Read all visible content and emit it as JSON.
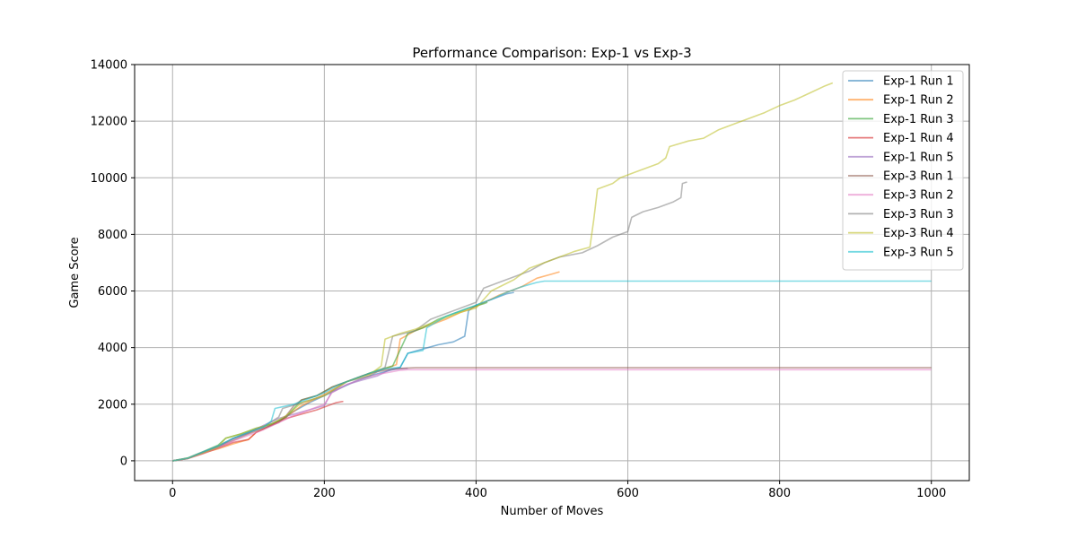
{
  "chart_data": {
    "type": "line",
    "title": "Performance Comparison: Exp-1 vs Exp-3",
    "xlabel": "Number of Moves",
    "ylabel": "Game Score",
    "xlim": [
      -50,
      1050
    ],
    "ylim": [
      -700,
      14000
    ],
    "xticks": [
      0,
      200,
      400,
      600,
      800,
      1000
    ],
    "yticks": [
      0,
      2000,
      4000,
      6000,
      8000,
      10000,
      12000,
      14000
    ],
    "xtick_labels": [
      "0",
      "200",
      "400",
      "600",
      "800",
      "1000"
    ],
    "ytick_labels": [
      "0",
      "2000",
      "4000",
      "6000",
      "8000",
      "10000",
      "12000",
      "14000"
    ],
    "grid": true,
    "legend_position": "top-right",
    "series": [
      {
        "name": "Exp-1 Run 1",
        "color": "#1f77b4",
        "points": [
          [
            0,
            0
          ],
          [
            20,
            90
          ],
          [
            40,
            300
          ],
          [
            60,
            520
          ],
          [
            80,
            800
          ],
          [
            100,
            1000
          ],
          [
            120,
            1200
          ],
          [
            140,
            1400
          ],
          [
            160,
            1750
          ],
          [
            180,
            2050
          ],
          [
            200,
            2300
          ],
          [
            220,
            2550
          ],
          [
            240,
            2800
          ],
          [
            260,
            3000
          ],
          [
            280,
            3150
          ],
          [
            300,
            3300
          ],
          [
            310,
            3800
          ],
          [
            330,
            3950
          ],
          [
            350,
            4100
          ],
          [
            370,
            4200
          ],
          [
            385,
            4400
          ],
          [
            390,
            5300
          ],
          [
            400,
            5500
          ],
          [
            420,
            5700
          ],
          [
            440,
            5900
          ],
          [
            450,
            5950
          ]
        ]
      },
      {
        "name": "Exp-1 Run 2",
        "color": "#ff7f0e",
        "points": [
          [
            0,
            0
          ],
          [
            20,
            80
          ],
          [
            40,
            280
          ],
          [
            60,
            420
          ],
          [
            80,
            600
          ],
          [
            100,
            750
          ],
          [
            110,
            1000
          ],
          [
            130,
            1250
          ],
          [
            150,
            1550
          ],
          [
            170,
            1950
          ],
          [
            200,
            2350
          ],
          [
            230,
            2800
          ],
          [
            260,
            3100
          ],
          [
            280,
            3250
          ],
          [
            295,
            3400
          ],
          [
            300,
            4300
          ],
          [
            320,
            4600
          ],
          [
            340,
            4800
          ],
          [
            360,
            5000
          ],
          [
            380,
            5250
          ],
          [
            400,
            5450
          ],
          [
            430,
            5850
          ],
          [
            460,
            6150
          ],
          [
            480,
            6450
          ],
          [
            500,
            6600
          ],
          [
            510,
            6680
          ]
        ]
      },
      {
        "name": "Exp-1 Run 3",
        "color": "#2ca02c",
        "points": [
          [
            0,
            0
          ],
          [
            20,
            100
          ],
          [
            40,
            320
          ],
          [
            60,
            550
          ],
          [
            70,
            800
          ],
          [
            90,
            950
          ],
          [
            110,
            1150
          ],
          [
            130,
            1300
          ],
          [
            150,
            1550
          ],
          [
            170,
            2150
          ],
          [
            190,
            2300
          ],
          [
            210,
            2600
          ],
          [
            230,
            2800
          ],
          [
            250,
            3000
          ],
          [
            270,
            3200
          ],
          [
            290,
            3350
          ],
          [
            310,
            4500
          ],
          [
            330,
            4700
          ],
          [
            350,
            5000
          ],
          [
            370,
            5200
          ],
          [
            390,
            5400
          ],
          [
            410,
            5550
          ],
          [
            415,
            5600
          ]
        ]
      },
      {
        "name": "Exp-1 Run 4",
        "color": "#d62728",
        "points": [
          [
            0,
            0
          ],
          [
            20,
            80
          ],
          [
            40,
            250
          ],
          [
            60,
            450
          ],
          [
            80,
            650
          ],
          [
            100,
            750
          ],
          [
            110,
            1000
          ],
          [
            130,
            1250
          ],
          [
            150,
            1500
          ],
          [
            170,
            1650
          ],
          [
            190,
            1800
          ],
          [
            205,
            1950
          ],
          [
            215,
            2050
          ],
          [
            225,
            2100
          ]
        ]
      },
      {
        "name": "Exp-1 Run 5",
        "color": "#9467bd",
        "points": [
          [
            0,
            0
          ],
          [
            20,
            90
          ],
          [
            40,
            300
          ],
          [
            60,
            500
          ],
          [
            80,
            780
          ],
          [
            100,
            980
          ],
          [
            120,
            1250
          ],
          [
            140,
            1500
          ],
          [
            160,
            1650
          ],
          [
            180,
            1800
          ],
          [
            200,
            1950
          ],
          [
            210,
            2450
          ],
          [
            230,
            2700
          ],
          [
            250,
            2850
          ],
          [
            270,
            3000
          ],
          [
            285,
            3200
          ],
          [
            300,
            3250
          ],
          [
            310,
            3270
          ]
        ]
      },
      {
        "name": "Exp-3 Run 1",
        "color": "#8c564b",
        "points": [
          [
            0,
            0
          ],
          [
            20,
            80
          ],
          [
            40,
            280
          ],
          [
            60,
            480
          ],
          [
            80,
            720
          ],
          [
            100,
            950
          ],
          [
            120,
            1150
          ],
          [
            140,
            1350
          ],
          [
            150,
            1600
          ],
          [
            160,
            1950
          ],
          [
            170,
            2150
          ],
          [
            190,
            2300
          ],
          [
            210,
            2600
          ],
          [
            230,
            2800
          ],
          [
            250,
            3000
          ],
          [
            270,
            3150
          ],
          [
            290,
            3250
          ],
          [
            310,
            3280
          ],
          [
            320,
            3290
          ],
          [
            1000,
            3290
          ]
        ]
      },
      {
        "name": "Exp-3 Run 2",
        "color": "#e377c2",
        "points": [
          [
            0,
            0
          ],
          [
            20,
            80
          ],
          [
            40,
            270
          ],
          [
            60,
            460
          ],
          [
            80,
            700
          ],
          [
            100,
            900
          ],
          [
            120,
            1100
          ],
          [
            140,
            1350
          ],
          [
            160,
            1600
          ],
          [
            180,
            1800
          ],
          [
            200,
            2000
          ],
          [
            210,
            2400
          ],
          [
            230,
            2700
          ],
          [
            250,
            2900
          ],
          [
            270,
            3050
          ],
          [
            290,
            3150
          ],
          [
            300,
            3200
          ],
          [
            310,
            3220
          ],
          [
            1000,
            3220
          ]
        ]
      },
      {
        "name": "Exp-3 Run 3",
        "color": "#7f7f7f",
        "points": [
          [
            0,
            0
          ],
          [
            20,
            90
          ],
          [
            40,
            300
          ],
          [
            60,
            520
          ],
          [
            80,
            780
          ],
          [
            100,
            1000
          ],
          [
            120,
            1200
          ],
          [
            140,
            1550
          ],
          [
            145,
            1850
          ],
          [
            170,
            2050
          ],
          [
            200,
            2300
          ],
          [
            230,
            2800
          ],
          [
            260,
            3000
          ],
          [
            280,
            3300
          ],
          [
            290,
            4400
          ],
          [
            320,
            4600
          ],
          [
            340,
            5000
          ],
          [
            360,
            5200
          ],
          [
            380,
            5400
          ],
          [
            400,
            5600
          ],
          [
            410,
            6100
          ],
          [
            430,
            6300
          ],
          [
            450,
            6500
          ],
          [
            470,
            6700
          ],
          [
            490,
            7000
          ],
          [
            510,
            7200
          ],
          [
            540,
            7350
          ],
          [
            560,
            7600
          ],
          [
            580,
            7900
          ],
          [
            600,
            8100
          ],
          [
            605,
            8600
          ],
          [
            620,
            8800
          ],
          [
            640,
            8950
          ],
          [
            660,
            9150
          ],
          [
            670,
            9300
          ],
          [
            672,
            9800
          ],
          [
            678,
            9850
          ]
        ]
      },
      {
        "name": "Exp-3 Run 4",
        "color": "#bcbd22",
        "points": [
          [
            0,
            0
          ],
          [
            20,
            90
          ],
          [
            40,
            280
          ],
          [
            60,
            480
          ],
          [
            70,
            800
          ],
          [
            90,
            950
          ],
          [
            110,
            1150
          ],
          [
            130,
            1300
          ],
          [
            150,
            1600
          ],
          [
            170,
            2050
          ],
          [
            200,
            2300
          ],
          [
            230,
            2800
          ],
          [
            260,
            3050
          ],
          [
            275,
            3350
          ],
          [
            280,
            4300
          ],
          [
            300,
            4500
          ],
          [
            320,
            4650
          ],
          [
            340,
            4850
          ],
          [
            360,
            5050
          ],
          [
            380,
            5250
          ],
          [
            400,
            5400
          ],
          [
            420,
            6000
          ],
          [
            450,
            6400
          ],
          [
            470,
            6800
          ],
          [
            490,
            7000
          ],
          [
            510,
            7200
          ],
          [
            530,
            7400
          ],
          [
            550,
            7550
          ],
          [
            555,
            8500
          ],
          [
            560,
            9600
          ],
          [
            580,
            9800
          ],
          [
            590,
            10000
          ],
          [
            610,
            10200
          ],
          [
            640,
            10500
          ],
          [
            650,
            10700
          ],
          [
            655,
            11100
          ],
          [
            680,
            11300
          ],
          [
            700,
            11400
          ],
          [
            720,
            11700
          ],
          [
            740,
            11900
          ],
          [
            760,
            12100
          ],
          [
            780,
            12300
          ],
          [
            800,
            12550
          ],
          [
            820,
            12750
          ],
          [
            840,
            13000
          ],
          [
            860,
            13250
          ],
          [
            870,
            13350
          ]
        ]
      },
      {
        "name": "Exp-3 Run 5",
        "color": "#17becf",
        "points": [
          [
            0,
            0
          ],
          [
            20,
            90
          ],
          [
            40,
            310
          ],
          [
            60,
            520
          ],
          [
            80,
            800
          ],
          [
            100,
            1000
          ],
          [
            120,
            1200
          ],
          [
            130,
            1400
          ],
          [
            135,
            1850
          ],
          [
            160,
            2000
          ],
          [
            180,
            2200
          ],
          [
            200,
            2400
          ],
          [
            220,
            2700
          ],
          [
            240,
            2900
          ],
          [
            260,
            3100
          ],
          [
            280,
            3250
          ],
          [
            300,
            3300
          ],
          [
            310,
            3800
          ],
          [
            330,
            3900
          ],
          [
            335,
            4700
          ],
          [
            360,
            5100
          ],
          [
            380,
            5300
          ],
          [
            400,
            5500
          ],
          [
            420,
            5700
          ],
          [
            440,
            5950
          ],
          [
            460,
            6150
          ],
          [
            480,
            6300
          ],
          [
            490,
            6350
          ],
          [
            1000,
            6350
          ]
        ]
      }
    ]
  }
}
